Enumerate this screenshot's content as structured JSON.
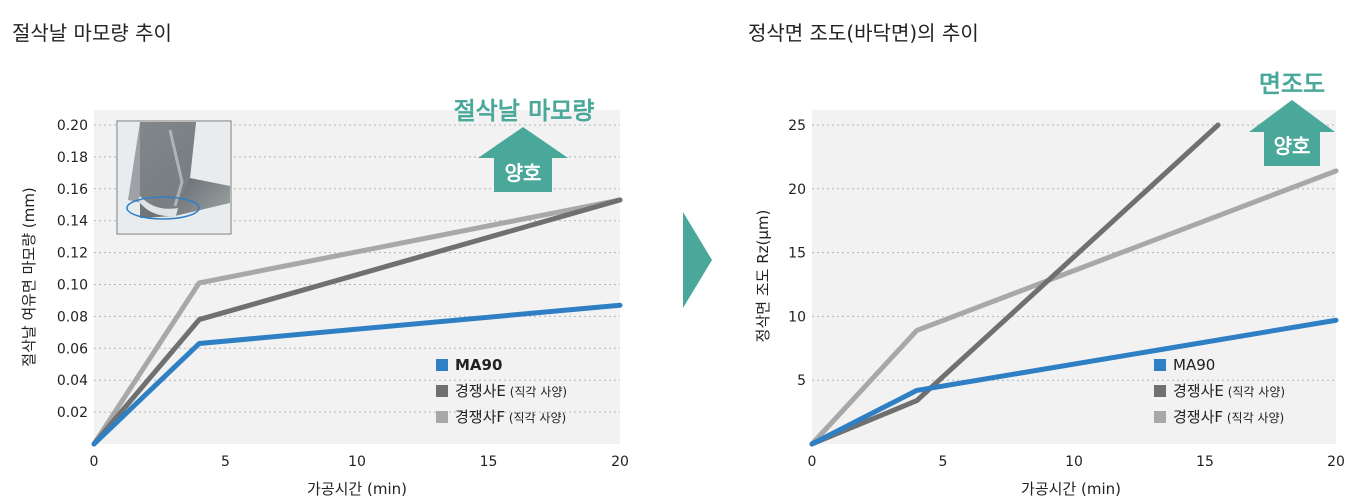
{
  "arrow_color": "#4aa89a",
  "chart_data": [
    {
      "type": "line",
      "title": "절삭날 마모량 추이",
      "xlabel": "가공시간 (min)",
      "ylabel": "절삭날 여유면 마모량 (mm)",
      "xlim": [
        0,
        20
      ],
      "ylim": [
        0,
        0.2
      ],
      "xticks": [
        0,
        5,
        10,
        15,
        20
      ],
      "xtick_labels": [
        "0",
        "5",
        "10",
        "15",
        "20"
      ],
      "yticks": [
        0.02,
        0.04,
        0.06,
        0.08,
        0.1,
        0.12,
        0.14,
        0.16,
        0.18,
        0.2
      ],
      "ytick_labels": [
        "0.02",
        "0.04",
        "0.06",
        "0.08",
        "0.10",
        "0.12",
        "0.14",
        "0.16",
        "0.18",
        "0.20"
      ],
      "grid": "horizontal dotted",
      "legend_position": "bottom-right",
      "annotation": {
        "label": "절삭날 마모량",
        "arrow_text": "양호",
        "color": "#4aa89a"
      },
      "inset": "cutting edge wear photo",
      "series": [
        {
          "name": "MA90",
          "bold": true,
          "color": "#2f7fc4",
          "x": [
            0,
            4,
            20
          ],
          "y": [
            0,
            0.063,
            0.087
          ]
        },
        {
          "name": "경쟁사E",
          "note": "(직각 사양)",
          "color": "#707070",
          "x": [
            0,
            4,
            20
          ],
          "y": [
            0,
            0.078,
            0.153
          ]
        },
        {
          "name": "경쟁사F",
          "note": "(직각 사양)",
          "color": "#a8a8a8",
          "x": [
            0,
            4,
            20
          ],
          "y": [
            0,
            0.101,
            0.153
          ]
        }
      ]
    },
    {
      "type": "line",
      "title": "정삭면 조도(바닥면)의 추이",
      "xlabel": "가공시간 (min)",
      "ylabel": "정삭면 조도 Rz(µm)",
      "xlim": [
        0,
        20
      ],
      "ylim": [
        0,
        25
      ],
      "xticks": [
        0,
        5,
        10,
        15,
        20
      ],
      "xtick_labels": [
        "0",
        "5",
        "10",
        "15",
        "20"
      ],
      "yticks": [
        5,
        10,
        15,
        20,
        25
      ],
      "ytick_labels": [
        "5",
        "10",
        "15",
        "20",
        "25"
      ],
      "grid": "horizontal dotted",
      "legend_position": "bottom-right",
      "annotation": {
        "label": "면조도",
        "arrow_text": "양호",
        "color": "#4aa89a"
      },
      "series": [
        {
          "name": "MA90",
          "bold": false,
          "color": "#2f7fc4",
          "x": [
            0,
            4,
            20
          ],
          "y": [
            0,
            4.2,
            9.7
          ]
        },
        {
          "name": "경쟁사E",
          "note": "(직각 사양)",
          "color": "#707070",
          "x": [
            0,
            4,
            15.5
          ],
          "y": [
            0,
            3.4,
            25
          ]
        },
        {
          "name": "경쟁사F",
          "note": "(직각 사양)",
          "color": "#a8a8a8",
          "x": [
            0,
            4,
            20
          ],
          "y": [
            0,
            8.9,
            21.4
          ]
        }
      ]
    }
  ]
}
